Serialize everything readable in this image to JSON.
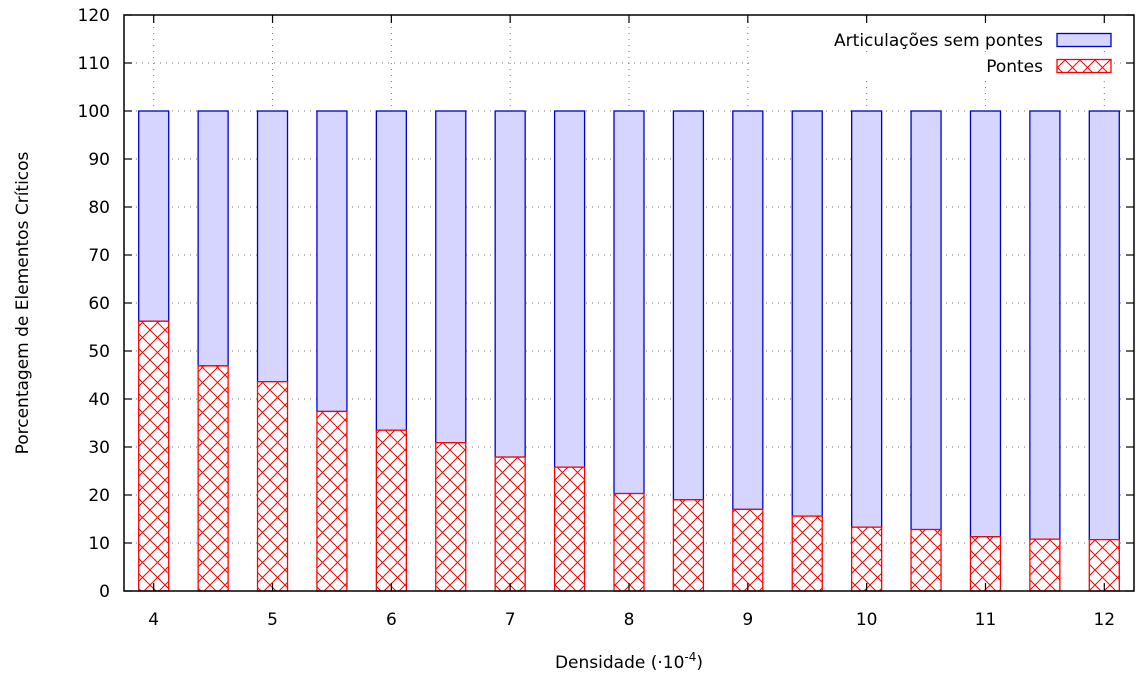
{
  "chart_data": {
    "type": "bar",
    "stacked": true,
    "xlabel": "Densidade (·10",
    "xlabel_superscript": "-4",
    "xlabel_suffix": ")",
    "ylabel": "Porcentagem de Elementos Críticos",
    "ylim": [
      0,
      120
    ],
    "yticks": [
      0,
      10,
      20,
      30,
      40,
      50,
      60,
      70,
      80,
      90,
      100,
      110,
      120
    ],
    "xlim": [
      3.75,
      12.25
    ],
    "xticks": [
      4,
      5,
      6,
      7,
      8,
      9,
      10,
      11,
      12
    ],
    "grid": true,
    "legend_position": "top-right",
    "x": [
      4,
      4.5,
      5,
      5.5,
      6,
      6.5,
      7,
      7.5,
      8,
      8.5,
      9,
      9.5,
      10,
      10.5,
      11,
      11.5,
      12
    ],
    "series": [
      {
        "name": "Pontes",
        "color": "#ff0000",
        "pattern": "crosshatch",
        "values": [
          56.2,
          46.9,
          43.6,
          37.4,
          33.5,
          30.9,
          27.9,
          25.8,
          20.3,
          19.0,
          17.0,
          15.6,
          13.3,
          12.8,
          11.3,
          10.8,
          10.7
        ]
      },
      {
        "name": "Articulações sem pontes",
        "color": "#0000cc",
        "fill": "#d5d5ff",
        "values": [
          43.8,
          53.1,
          56.4,
          62.6,
          66.5,
          69.1,
          72.1,
          74.2,
          79.7,
          81.0,
          83.0,
          84.4,
          86.7,
          87.2,
          88.7,
          89.2,
          89.3
        ]
      }
    ]
  }
}
